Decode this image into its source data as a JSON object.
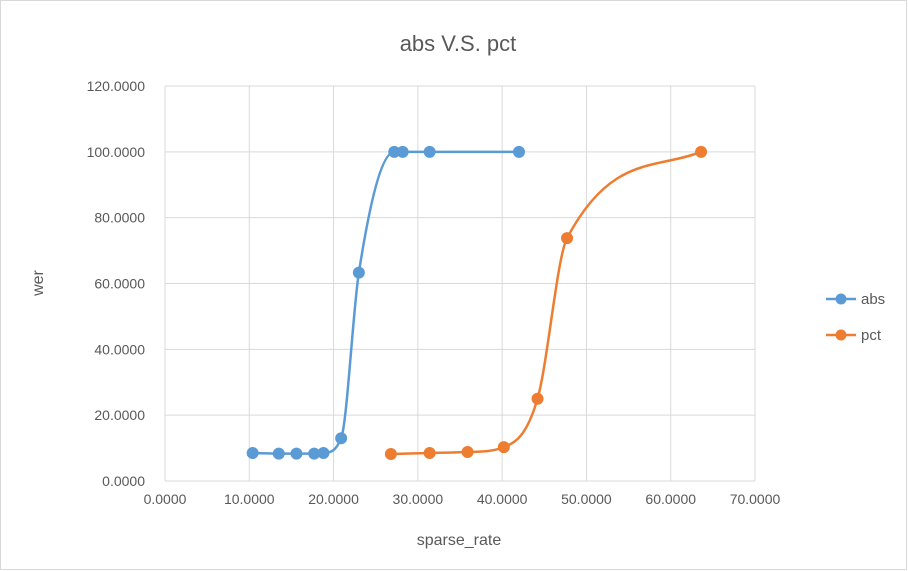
{
  "chart_data": {
    "type": "scatter",
    "title": "abs V.S. pct",
    "xlabel": "sparse_rate",
    "ylabel": "wer",
    "xlim": [
      0,
      70
    ],
    "ylim": [
      0,
      120
    ],
    "xticks": [
      0,
      10,
      20,
      30,
      40,
      50,
      60,
      70
    ],
    "yticks": [
      0,
      20,
      40,
      60,
      80,
      100,
      120
    ],
    "xtick_labels": [
      "0.0000",
      "10.0000",
      "20.0000",
      "30.0000",
      "40.0000",
      "50.0000",
      "60.0000",
      "70.0000"
    ],
    "ytick_labels": [
      "0.0000",
      "20.0000",
      "40.0000",
      "60.0000",
      "80.0000",
      "100.0000",
      "120.0000"
    ],
    "grid": true,
    "legend_position": "right",
    "smooth_lines": true,
    "markers": true,
    "series": [
      {
        "name": "abs",
        "color": "#5b9bd5",
        "x": [
          10.4,
          13.5,
          15.6,
          17.7,
          18.8,
          20.9,
          23.0,
          27.2,
          28.2,
          31.4,
          42.0
        ],
        "y": [
          8.5,
          8.3,
          8.3,
          8.3,
          8.5,
          13.0,
          63.3,
          100.0,
          100.0,
          100.0,
          100.0
        ]
      },
      {
        "name": "pct",
        "color": "#ed7d31",
        "x": [
          26.8,
          31.4,
          35.9,
          40.2,
          44.2,
          47.7,
          63.6
        ],
        "y": [
          8.2,
          8.5,
          8.8,
          10.3,
          25.0,
          73.8,
          100.0
        ]
      }
    ]
  }
}
